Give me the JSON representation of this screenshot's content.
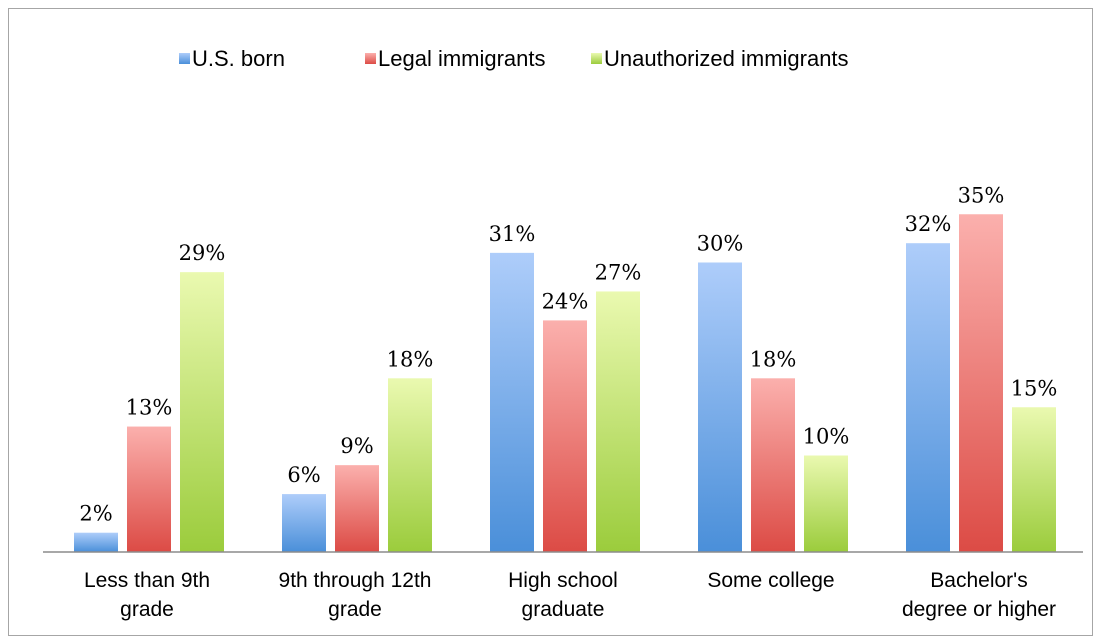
{
  "chart_data": {
    "type": "bar",
    "title": "",
    "xlabel": "",
    "ylabel": "",
    "ylim": [
      0,
      40
    ],
    "grid": false,
    "legend_position": "top",
    "categories": [
      [
        "Less than 9th",
        "grade"
      ],
      [
        "9th through 12th",
        "grade"
      ],
      [
        "High school",
        "graduate"
      ],
      [
        "Some college"
      ],
      [
        "Bachelor's",
        "degree or higher"
      ]
    ],
    "series": [
      {
        "name": "U.S. born",
        "values": [
          2,
          6,
          31,
          30,
          32
        ],
        "labels": [
          "2%",
          "6%",
          "31%",
          "30%",
          "32%"
        ],
        "color_top": "#aecdfa",
        "color_bottom": "#4a8fd9"
      },
      {
        "name": "Legal immigrants",
        "values": [
          13,
          9,
          24,
          18,
          35
        ],
        "labels": [
          "13%",
          "9%",
          "24%",
          "18%",
          "35%"
        ],
        "color_top": "#fbb0ad",
        "color_bottom": "#dc4b45"
      },
      {
        "name": "Unauthorized immigrants",
        "values": [
          29,
          18,
          27,
          10,
          15
        ],
        "labels": [
          "29%",
          "18%",
          "27%",
          "10%",
          "15%"
        ],
        "color_top": "#eaf9b0",
        "color_bottom": "#9bcc3c"
      }
    ]
  }
}
